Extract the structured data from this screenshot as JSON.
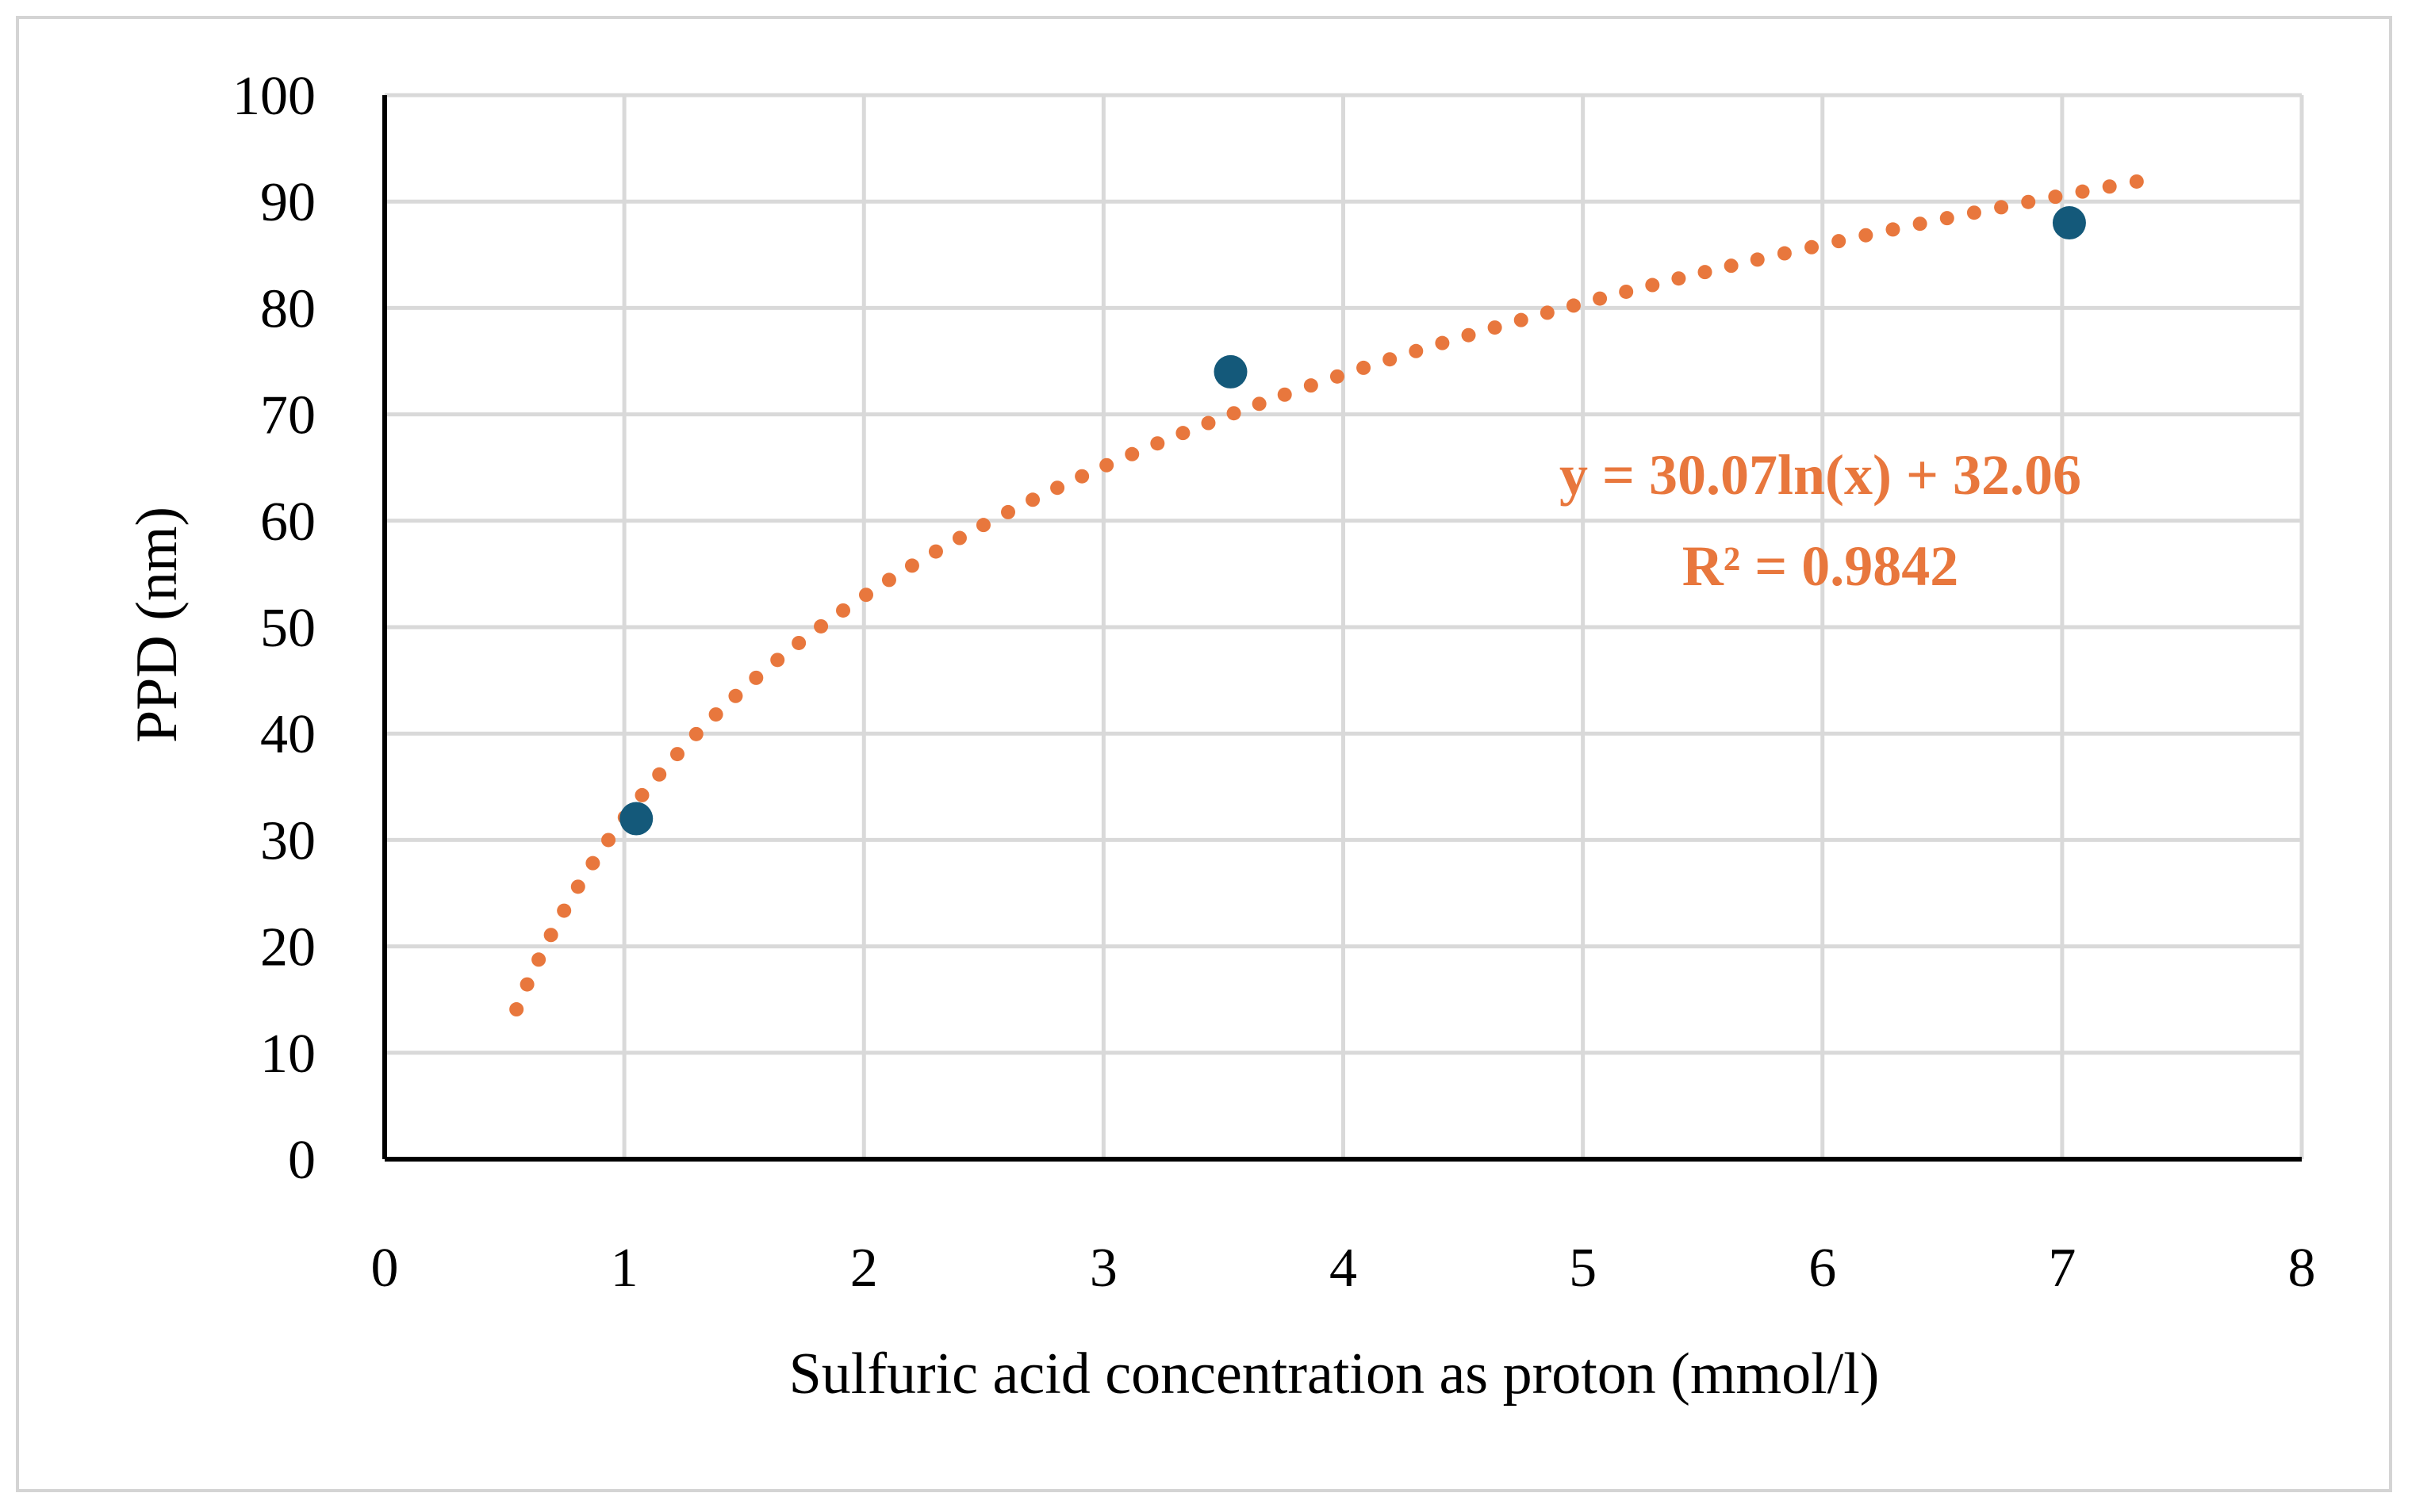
{
  "colors": {
    "points": "#14597a",
    "trendline": "#e8773d",
    "grid": "#d9d9d9",
    "axis": "#000000",
    "frame": "#d4d4d4"
  },
  "chart_data": {
    "type": "scatter",
    "xlabel": "Sulfuric acid concentration as proton (mmol/l)",
    "ylabel": "PPD (nm)",
    "xlim": [
      0,
      8
    ],
    "ylim": [
      0,
      100
    ],
    "x_ticks": [
      0,
      1,
      2,
      3,
      4,
      5,
      6,
      7,
      8
    ],
    "y_ticks": [
      0,
      10,
      20,
      30,
      40,
      50,
      60,
      70,
      80,
      90,
      100
    ],
    "grid": true,
    "points": [
      {
        "x": 1.05,
        "y": 32
      },
      {
        "x": 3.53,
        "y": 74
      },
      {
        "x": 7.03,
        "y": 88
      }
    ],
    "trendline": {
      "type": "logarithmic",
      "style": "dotted",
      "a": 30.07,
      "b": 32.06,
      "x_range": [
        0.55,
        7.4
      ],
      "equation_label": "y = 30.07ln(x) + 32.06",
      "r2_label": "R² = 0.9842"
    }
  }
}
